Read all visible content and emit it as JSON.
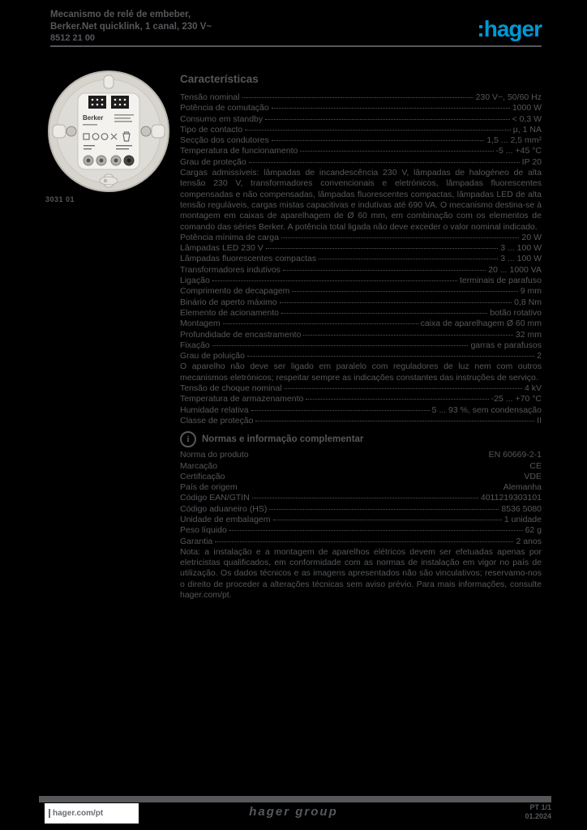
{
  "document": {
    "title_line1": "Mecanismo de relé de embeber,",
    "title_line2": "Berker.Net quicklink, 1 canal, 230 V~",
    "reference": "8512 21 00"
  },
  "brand": {
    "logo_text": ":hager"
  },
  "product_image": {
    "brand_on_device": "Berker",
    "caption": "3031 01"
  },
  "characteristics": {
    "heading": "Características",
    "rows": [
      {
        "type": "spec",
        "label": "Tensão nominal",
        "value": "230 V~, 50/60 Hz"
      },
      {
        "type": "spec",
        "label": "Potência de comutação",
        "value": "1000 W"
      },
      {
        "type": "spec",
        "label": "Consumo em standby",
        "value": "< 0,3 W"
      },
      {
        "type": "spec",
        "label": "Tipo de contacto",
        "value": "µ, 1 NA"
      },
      {
        "type": "spec",
        "label": "Secção dos condutores",
        "value": "1,5 ... 2,5 mm²"
      },
      {
        "type": "spec",
        "label": "Temperatura de funcionamento",
        "value": "-5 ... +45 °C"
      },
      {
        "type": "spec",
        "label": "Grau de proteção",
        "value": "IP 20"
      },
      {
        "type": "par",
        "text": "Cargas admissíveis: lâmpadas de incandescência 230 V, lâmpadas de halogéneo de alta tensão 230 V, transformadores convencionais e eletrónicos, lâmpadas fluorescentes compensadas e não compensadas, lâmpadas fluorescentes compactas, lâmpadas LED de alta tensão reguláveis, cargas mistas capacitivas e indutivas até 690 VA. O mecanismo destina-se à montagem em caixas de aparelhagem de Ø 60 mm, em combinação com os elementos de comando das séries Berker. A potência total ligada não deve exceder o valor nominal indicado."
      },
      {
        "type": "spec",
        "label": "Potência mínima de carga",
        "value": "20 W"
      },
      {
        "type": "spec",
        "label": "Lâmpadas LED 230 V",
        "value": "3 ... 100 W"
      },
      {
        "type": "spec",
        "label": "Lâmpadas fluorescentes compactas",
        "value": "3 ... 100 W"
      },
      {
        "type": "spec",
        "label": "Transformadores indutivos",
        "value": "20 ... 1000 VA"
      },
      {
        "type": "spec",
        "label": "Ligação",
        "value": "terminais de parafuso"
      },
      {
        "type": "spec",
        "label": "Comprimento de decapagem",
        "value": "9 mm"
      },
      {
        "type": "spec",
        "label": "Binário de aperto máximo",
        "value": "0,8 Nm"
      },
      {
        "type": "spec",
        "label": "Elemento de acionamento",
        "value": "botão rotativo"
      },
      {
        "type": "spec",
        "label": "Montagem",
        "value": "caixa de aparelhagem Ø 60 mm"
      },
      {
        "type": "spec",
        "label": "Profundidade de encastramento",
        "value": "32 mm"
      },
      {
        "type": "spec",
        "label": "Fixação",
        "value": "garras e parafusos"
      },
      {
        "type": "spec",
        "label": "Grau de poluição",
        "value": "2"
      },
      {
        "type": "par",
        "text": "O aparelho não deve ser ligado em paralelo com reguladores de luz nem com outros mecanismos eletrónicos; respeitar sempre as indicações constantes das instruções de serviço."
      },
      {
        "type": "spec",
        "label": "Tensão de choque nominal",
        "value": "4 kV"
      },
      {
        "type": "spec",
        "label": "Temperatura de armazenamento",
        "value": "-25 ... +70 °C"
      },
      {
        "type": "spec",
        "label": "Humidade relativa",
        "value": "5 ... 93 %, sem condensação"
      },
      {
        "type": "spec",
        "label": "Classe de proteção",
        "value": "II"
      },
      {
        "type": "subhead",
        "label": "Normas e informação complementar"
      },
      {
        "type": "right",
        "label": "Norma do produto",
        "value": "EN 60669-2-1"
      },
      {
        "type": "right",
        "label": "Marcação",
        "value": "CE"
      },
      {
        "type": "right",
        "label": "Certificação",
        "value": "VDE"
      },
      {
        "type": "right",
        "label": "País de origem",
        "value": "Alemanha"
      },
      {
        "type": "spec",
        "label": "Código EAN/GTIN",
        "value": "4011219303101"
      },
      {
        "type": "spec",
        "label": "Código aduaneiro (HS)",
        "value": "8536 5080"
      },
      {
        "type": "spec",
        "label": "Unidade de embalagem",
        "value": "1 unidade"
      },
      {
        "type": "spec",
        "label": "Peso líquido",
        "value": "62 g"
      },
      {
        "type": "spec",
        "label": "Garantia",
        "value": "2 anos"
      },
      {
        "type": "par",
        "text": "Nota: a instalação e a montagem de aparelhos elétricos devem ser efetuadas apenas por eletricistas qualificados, em conformidade com as normas de instalação em vigor no país de utilização. Os dados técnicos e as imagens apresentados não são vinculativos; reservamo-nos o direito de proceder a alterações técnicas sem aviso prévio. Para mais informações, consulte hager.com/pt."
      }
    ]
  },
  "footer": {
    "website": "hager.com/pt",
    "group": "hager group",
    "locale": "PT 1/1",
    "date": "01.2024"
  },
  "colors": {
    "background": "#000000",
    "text_gray": "#55575a",
    "accent_blue": "#0098d4"
  }
}
